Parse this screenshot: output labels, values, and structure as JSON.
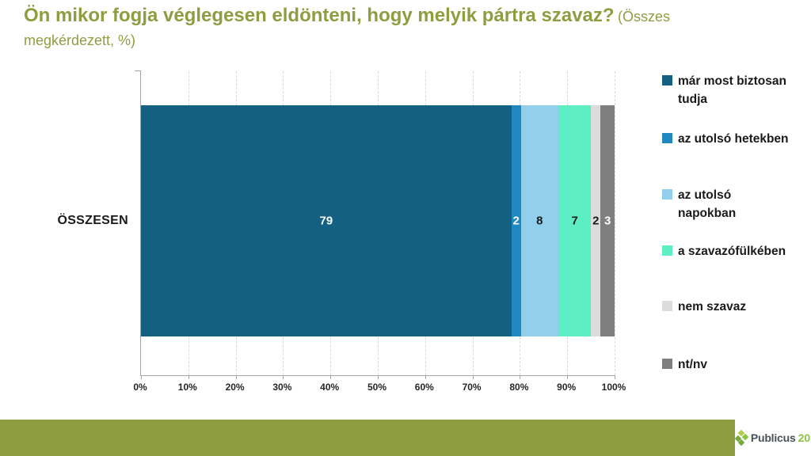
{
  "header": {
    "title": "Ön mikor fogja véglegesen eldönteni, hogy melyik pártra szavaz?",
    "subtitle_line1": "(Összes",
    "subtitle_line2": "megkérdezett, %)"
  },
  "chart_data": {
    "type": "bar",
    "orientation": "horizontal-stacked",
    "title": "Ön mikor fogja véglegesen eldönteni, hogy melyik pártra szavaz? (Összes megkérdezett, %)",
    "categories": [
      "ÖSSZESEN"
    ],
    "series": [
      {
        "name": "már most biztosan tudja",
        "legend_lines": [
          "már most biztosan",
          "tudja"
        ],
        "values": [
          79
        ],
        "color": "#136082",
        "label_color": "#ffffff"
      },
      {
        "name": "az utolsó hetekben",
        "legend_lines": [
          "az utolsó hetekben"
        ],
        "values": [
          2
        ],
        "color": "#1f88c1",
        "label_color": "#ffffff"
      },
      {
        "name": "az utolsó napokban",
        "legend_lines": [
          "az utolsó",
          "napokban"
        ],
        "values": [
          8
        ],
        "color": "#92cfec",
        "label_color": "#1a1a1a"
      },
      {
        "name": "a szavazófülkében",
        "legend_lines": [
          "a szavazófülkében"
        ],
        "values": [
          7
        ],
        "color": "#5eeec3",
        "label_color": "#1a1a1a"
      },
      {
        "name": "nem szavaz",
        "legend_lines": [
          "nem szavaz"
        ],
        "values": [
          2
        ],
        "color": "#dcdcdc",
        "label_color": "#1a1a1a"
      },
      {
        "name": "nt/nv",
        "legend_lines": [
          "nt/nv"
        ],
        "values": [
          3
        ],
        "color": "#7f7f7f",
        "label_color": "#ffffff"
      }
    ],
    "x_ticks": [
      "0%",
      "10%",
      "20%",
      "30%",
      "40%",
      "50%",
      "60%",
      "70%",
      "80%",
      "90%",
      "100%"
    ],
    "xlim": [
      0,
      100
    ],
    "grid": "vertical-dashed",
    "legend_position": "right"
  },
  "footer": {
    "brand_name": "Publicus",
    "brand_number": "20"
  },
  "colors": {
    "accent_olive": "#8c9c3e",
    "title_olive": "#8d9e41",
    "axis": "#a6a6a6",
    "gridline": "#d9d9d9",
    "brand_text": "#4a5258",
    "brand_green": "#8bc53f"
  }
}
